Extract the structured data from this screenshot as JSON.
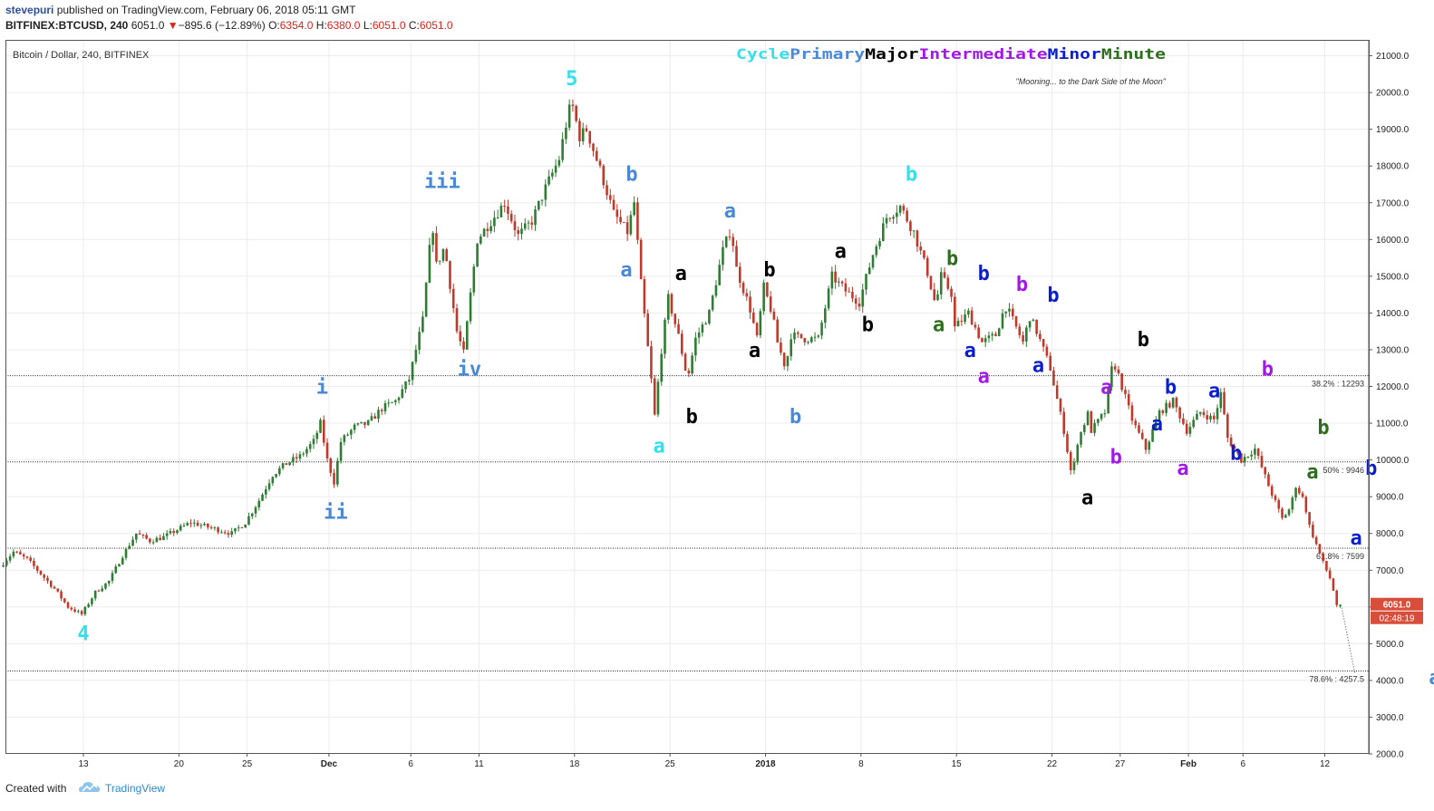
{
  "header": {
    "user": "stevepuri",
    "published": " published on TradingView.com, February 06, 2018 05:11 GMT",
    "symbol": "BITFINEX:BTCUSD, 240",
    "last": "6051.0",
    "down_arrow": "▼",
    "change": "−895.6 (−12.89%)",
    "o_label": "O:",
    "o_val": "6354.0",
    "h_label": "H:",
    "h_val": "6380.0",
    "l_label": "L:",
    "l_val": "6051.0",
    "c_label": "C:",
    "c_val": "6051.0"
  },
  "footer": {
    "created_with": "Created with",
    "brand": "TradingView"
  },
  "colors": {
    "cycle": "#33e0ec",
    "primary": "#4a88d8",
    "major": "#000000",
    "intermediate": "#a318e8",
    "minor": "#0a1ecc",
    "minute": "#2c6e1e",
    "up_candle": "#2e7d32",
    "down_candle": "#c0392b",
    "price_tag": "#d94e3b"
  },
  "chart_data": {
    "type": "candlestick",
    "title": "Bitcoin / Dollar, 240, BITFINEX",
    "legend": [
      "Cycle",
      "Primary",
      "Major",
      "Intermediate",
      "Minor",
      "Minute"
    ],
    "subtitle": "\"Mooning... to the Dark Side of the Moon\"",
    "ylim": [
      2000,
      21300
    ],
    "y_ticks": [
      "21000.0",
      "20000.0",
      "19000.0",
      "18000.0",
      "17000.0",
      "16000.0",
      "15000.0",
      "14000.0",
      "13000.0",
      "12000.0",
      "11000.0",
      "10000.0",
      "9000.0",
      "8000.0",
      "7000.0",
      "6000.0",
      "5000.0",
      "4000.0",
      "3000.0",
      "2000.0"
    ],
    "x_ticks": [
      "13",
      "20",
      "25",
      "Dec",
      "6",
      "11",
      "18",
      "25",
      "2018",
      "8",
      "15",
      "22",
      "27",
      "Feb",
      "6",
      "12"
    ],
    "x_tick_day": [
      13,
      20,
      25,
      31,
      37,
      42,
      49,
      56,
      63,
      70,
      77,
      84,
      89,
      94,
      98,
      104
    ],
    "price_path": [
      [
        7,
        7100
      ],
      [
        8,
        7500
      ],
      [
        9,
        7300
      ],
      [
        10,
        6900
      ],
      [
        11,
        6500
      ],
      [
        12,
        6000
      ],
      [
        13,
        5800
      ],
      [
        14,
        6400
      ],
      [
        15,
        6700
      ],
      [
        16,
        7400
      ],
      [
        17,
        8000
      ],
      [
        18,
        7800
      ],
      [
        19,
        7900
      ],
      [
        20,
        8100
      ],
      [
        21,
        8300
      ],
      [
        22,
        8200
      ],
      [
        23,
        8100
      ],
      [
        24,
        8000
      ],
      [
        25,
        8300
      ],
      [
        26,
        8900
      ],
      [
        27,
        9600
      ],
      [
        28,
        9900
      ],
      [
        29,
        10100
      ],
      [
        30,
        10500
      ],
      [
        30.5,
        11000
      ],
      [
        31,
        10000
      ],
      [
        31.5,
        9400
      ],
      [
        32,
        10500
      ],
      [
        33,
        10900
      ],
      [
        34,
        11000
      ],
      [
        35,
        11400
      ],
      [
        36,
        11600
      ],
      [
        37,
        12200
      ],
      [
        38,
        13800
      ],
      [
        38.7,
        16500
      ],
      [
        39,
        15300
      ],
      [
        39.6,
        15800
      ],
      [
        40.5,
        13500
      ],
      [
        41,
        12900
      ],
      [
        41.5,
        14500
      ],
      [
        42,
        16000
      ],
      [
        43,
        16500
      ],
      [
        44,
        17000
      ],
      [
        45,
        16100
      ],
      [
        46,
        16500
      ],
      [
        47,
        17400
      ],
      [
        48,
        18200
      ],
      [
        48.7,
        19500
      ],
      [
        49,
        19600
      ],
      [
        49.5,
        18800
      ],
      [
        50,
        19000
      ],
      [
        51,
        17900
      ],
      [
        52,
        16700
      ],
      [
        53,
        16200
      ],
      [
        53.5,
        17000
      ],
      [
        54,
        14800
      ],
      [
        54.8,
        12000
      ],
      [
        55,
        11200
      ],
      [
        55.5,
        13000
      ],
      [
        56,
        14400
      ],
      [
        56.8,
        13300
      ],
      [
        57.4,
        12200
      ],
      [
        58,
        13300
      ],
      [
        59,
        14000
      ],
      [
        60,
        15700
      ],
      [
        60.6,
        16300
      ],
      [
        61,
        15200
      ],
      [
        62,
        14100
      ],
      [
        62.5,
        13300
      ],
      [
        63,
        14700
      ],
      [
        63.6,
        14000
      ],
      [
        64,
        13200
      ],
      [
        64.6,
        12500
      ],
      [
        65,
        13400
      ],
      [
        66,
        13300
      ],
      [
        67,
        13300
      ],
      [
        68,
        15000
      ],
      [
        69,
        14600
      ],
      [
        70,
        14300
      ],
      [
        71,
        15600
      ],
      [
        72,
        16600
      ],
      [
        73,
        16900
      ],
      [
        74,
        16200
      ],
      [
        75,
        15100
      ],
      [
        75.6,
        14200
      ],
      [
        76,
        15000
      ],
      [
        76.8,
        14500
      ],
      [
        77,
        13600
      ],
      [
        78,
        14000
      ],
      [
        79,
        13200
      ],
      [
        80,
        13400
      ],
      [
        80.7,
        14200
      ],
      [
        81,
        14000
      ],
      [
        82,
        13200
      ],
      [
        82.5,
        13900
      ],
      [
        83,
        13500
      ],
      [
        84,
        12500
      ],
      [
        85,
        10800
      ],
      [
        85.6,
        9500
      ],
      [
        86,
        10500
      ],
      [
        86.8,
        11300
      ],
      [
        87,
        10800
      ],
      [
        88,
        11300
      ],
      [
        88.6,
        12700
      ],
      [
        89,
        12300
      ],
      [
        90,
        11100
      ],
      [
        91,
        10300
      ],
      [
        92,
        11300
      ],
      [
        93,
        11600
      ],
      [
        94,
        10800
      ],
      [
        95,
        11300
      ],
      [
        96,
        11100
      ],
      [
        96.5,
        11800
      ],
      [
        97,
        10600
      ],
      [
        98,
        10000
      ],
      [
        99,
        10300
      ],
      [
        100,
        9300
      ],
      [
        101,
        8400
      ],
      [
        101.6,
        8700
      ],
      [
        102,
        9300
      ],
      [
        102.6,
        8900
      ],
      [
        103,
        8200
      ],
      [
        104,
        7200
      ],
      [
        104.6,
        6700
      ],
      [
        105,
        6051
      ]
    ],
    "horizontal_levels": [
      {
        "price": 12293,
        "label": "38.2% : 12293"
      },
      {
        "price": 9946,
        "label": "50% : 9946"
      },
      {
        "price": 7599,
        "label": "61.8% : 7599"
      },
      {
        "price": 4257.5,
        "label": "78.6% : 4257.5"
      }
    ],
    "last_price": "6051.0",
    "countdown": "02:48:19",
    "wave_labels": [
      {
        "text": "4",
        "degree": "cycle",
        "day": 13,
        "price": 5100
      },
      {
        "text": "i",
        "degree": "primary",
        "day": 30.5,
        "price": 11800
      },
      {
        "text": "ii",
        "degree": "primary",
        "day": 31.5,
        "price": 8400
      },
      {
        "text": "iii",
        "degree": "primary",
        "day": 39.3,
        "price": 17400
      },
      {
        "text": "iv",
        "degree": "primary",
        "day": 41.3,
        "price": 12300
      },
      {
        "text": "5",
        "degree": "cycle",
        "day": 48.8,
        "price": 20200
      },
      {
        "text": "b",
        "degree": "primary",
        "day": 53.2,
        "price": 17600
      },
      {
        "text": "a",
        "degree": "primary",
        "day": 52.8,
        "price": 15000
      },
      {
        "text": "a",
        "degree": "cycle",
        "day": 55.2,
        "price": 10200
      },
      {
        "text": "a",
        "degree": "major",
        "day": 56.8,
        "price": 14900
      },
      {
        "text": "b",
        "degree": "major",
        "day": 57.6,
        "price": 11000
      },
      {
        "text": "a",
        "degree": "primary",
        "day": 60.4,
        "price": 16600
      },
      {
        "text": "b",
        "degree": "major",
        "day": 63.3,
        "price": 15000
      },
      {
        "text": "a",
        "degree": "major",
        "day": 62.2,
        "price": 12800
      },
      {
        "text": "b",
        "degree": "primary",
        "day": 65.2,
        "price": 11000
      },
      {
        "text": "a",
        "degree": "major",
        "day": 68.5,
        "price": 15500
      },
      {
        "text": "b",
        "degree": "major",
        "day": 70.5,
        "price": 13500
      },
      {
        "text": "b",
        "degree": "cycle",
        "day": 73.7,
        "price": 17600
      },
      {
        "text": "b",
        "degree": "minute",
        "day": 76.7,
        "price": 15300
      },
      {
        "text": "a",
        "degree": "minute",
        "day": 75.7,
        "price": 13500
      },
      {
        "text": "b",
        "degree": "minor",
        "day": 79,
        "price": 14900
      },
      {
        "text": "a",
        "degree": "minor",
        "day": 78,
        "price": 12800
      },
      {
        "text": "a",
        "degree": "intermediate",
        "day": 79,
        "price": 12100
      },
      {
        "text": "b",
        "degree": "intermediate",
        "day": 81.8,
        "price": 14600
      },
      {
        "text": "b",
        "degree": "minor",
        "day": 84.1,
        "price": 14300
      },
      {
        "text": "a",
        "degree": "minor",
        "day": 83,
        "price": 12400
      },
      {
        "text": "a",
        "degree": "major",
        "day": 86.6,
        "price": 8800
      },
      {
        "text": "a",
        "degree": "intermediate",
        "day": 88,
        "price": 11800
      },
      {
        "text": "b",
        "degree": "intermediate",
        "day": 88.7,
        "price": 9900
      },
      {
        "text": "b",
        "degree": "major",
        "day": 90.7,
        "price": 13100
      },
      {
        "text": "b",
        "degree": "minor",
        "day": 92.7,
        "price": 11800
      },
      {
        "text": "a",
        "degree": "minor",
        "day": 91.7,
        "price": 10800
      },
      {
        "text": "a",
        "degree": "intermediate",
        "day": 93.6,
        "price": 9600
      },
      {
        "text": "a",
        "degree": "minor",
        "day": 95.9,
        "price": 11700
      },
      {
        "text": "b",
        "degree": "minor",
        "day": 97.5,
        "price": 10000
      },
      {
        "text": "b",
        "degree": "intermediate",
        "day": 99.8,
        "price": 12300
      },
      {
        "text": "b",
        "degree": "minute",
        "day": 103.9,
        "price": 10700
      },
      {
        "text": "a",
        "degree": "minute",
        "day": 103.1,
        "price": 9500
      },
      {
        "text": "b",
        "degree": "minor",
        "day": 107.4,
        "price": 9600
      },
      {
        "text": "a",
        "degree": "minor",
        "day": 106.3,
        "price": 7700
      },
      {
        "text": "a?",
        "degree": "primary",
        "day": 112.5,
        "price": 3900
      }
    ]
  }
}
